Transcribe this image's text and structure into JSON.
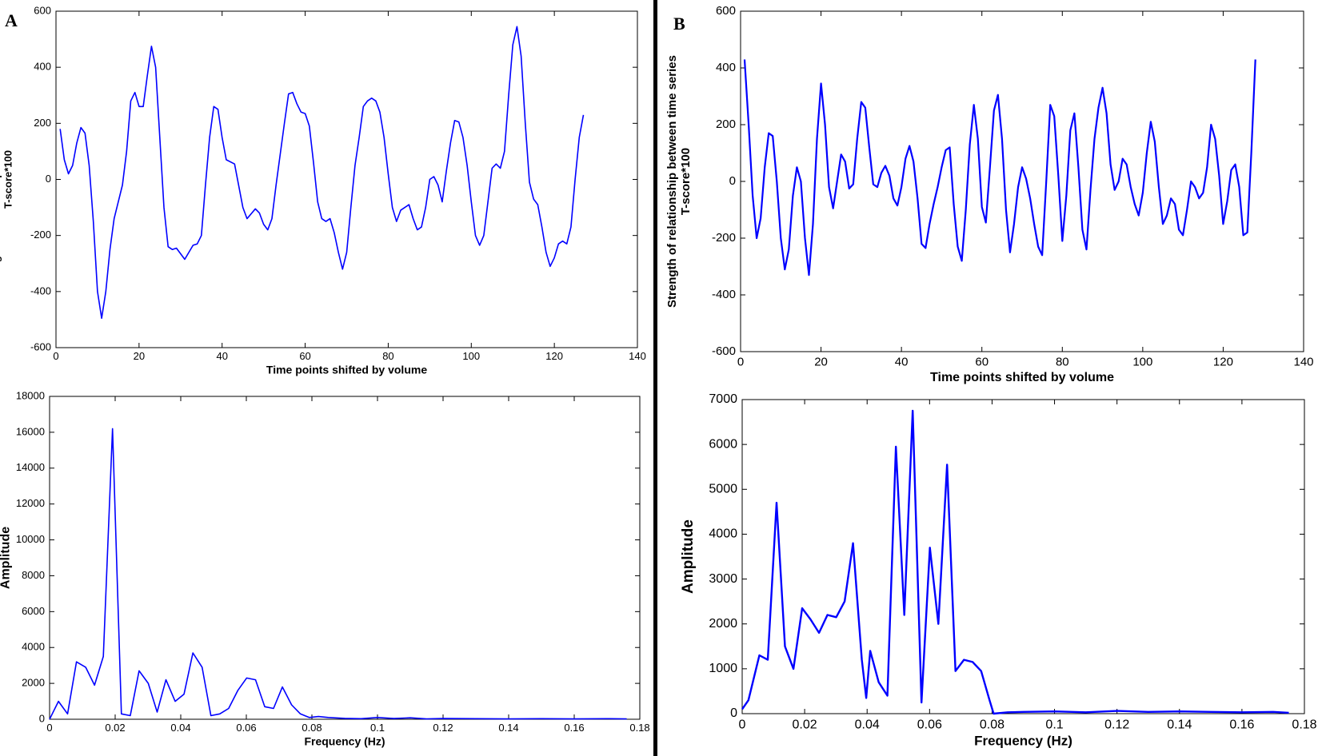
{
  "chart_data": [
    {
      "type": "line",
      "panel_label": "A",
      "xlabel": "Time points shifted by volume",
      "ylabel": [
        "Strength of relationship between time series",
        "T-score*100"
      ],
      "color": "#0000ff",
      "xlim": [
        0,
        140
      ],
      "ylim": [
        -600,
        600
      ],
      "xticks": [
        0,
        20,
        40,
        60,
        80,
        100,
        120,
        140
      ],
      "yticks": [
        -600,
        -400,
        -200,
        0,
        200,
        400,
        600
      ],
      "x": [
        1,
        2,
        3,
        4,
        5,
        6,
        7,
        8,
        9,
        10,
        11,
        12,
        13,
        14,
        16,
        17,
        18,
        19,
        20,
        21,
        22,
        23,
        24,
        25,
        26,
        27,
        28,
        29,
        31,
        33,
        34,
        35,
        36,
        37,
        38,
        39,
        40,
        41,
        43,
        45,
        46,
        48,
        49,
        50,
        51,
        52,
        53,
        55,
        56,
        57,
        58,
        59,
        60,
        61,
        62,
        63,
        64,
        65,
        66,
        67,
        68,
        69,
        70,
        71,
        72,
        73,
        74,
        75,
        76,
        77,
        78,
        79,
        80,
        81,
        82,
        83,
        84,
        85,
        86,
        87,
        88,
        89,
        90,
        91,
        92,
        93,
        94,
        95,
        96,
        97,
        98,
        99,
        100,
        101,
        102,
        103,
        104,
        105,
        106,
        107,
        108,
        109,
        110,
        111,
        112,
        113,
        114,
        115,
        116,
        117,
        118,
        119,
        120,
        121,
        122,
        123,
        124,
        125,
        126,
        127
      ],
      "values": [
        180,
        70,
        20,
        50,
        130,
        185,
        165,
        50,
        -150,
        -400,
        -495,
        -400,
        -250,
        -140,
        -20,
        100,
        280,
        310,
        260,
        260,
        370,
        475,
        400,
        150,
        -100,
        -240,
        -250,
        -245,
        -285,
        -235,
        -230,
        -200,
        -20,
        150,
        260,
        250,
        150,
        70,
        55,
        -100,
        -140,
        -105,
        -120,
        -160,
        -180,
        -140,
        -20,
        200,
        305,
        310,
        270,
        240,
        235,
        190,
        60,
        -80,
        -140,
        -150,
        -140,
        -190,
        -260,
        -320,
        -260,
        -100,
        50,
        150,
        260,
        280,
        290,
        280,
        240,
        150,
        20,
        -100,
        -150,
        -110,
        -100,
        -90,
        -140,
        -180,
        -170,
        -100,
        0,
        10,
        -20,
        -80,
        30,
        130,
        210,
        205,
        150,
        50,
        -80,
        -200,
        -235,
        -200,
        -80,
        40,
        55,
        40,
        100,
        300,
        480,
        545,
        440,
        200,
        -10,
        -70,
        -90,
        -170,
        -260,
        -310,
        -280,
        -230,
        -220,
        -230,
        -170,
        0,
        150,
        230
      ]
    },
    {
      "type": "line",
      "xlabel": "Frequency (Hz)",
      "ylabel": [
        "Amplitude"
      ],
      "color": "#0000ff",
      "xlim": [
        0,
        0.18
      ],
      "ylim": [
        0,
        18000
      ],
      "xticks": [
        0,
        0.02,
        0.04,
        0.06,
        0.08,
        0.1,
        0.12,
        0.14,
        0.16,
        0.18
      ],
      "yticks": [
        0,
        2000,
        4000,
        6000,
        8000,
        10000,
        12000,
        14000,
        16000,
        18000
      ],
      "x": [
        0,
        0.0027,
        0.0055,
        0.0082,
        0.011,
        0.0137,
        0.0164,
        0.0192,
        0.0219,
        0.0246,
        0.0273,
        0.0301,
        0.0328,
        0.0355,
        0.0383,
        0.041,
        0.0437,
        0.0465,
        0.0492,
        0.0519,
        0.0546,
        0.0574,
        0.0601,
        0.0628,
        0.0656,
        0.0683,
        0.071,
        0.0738,
        0.0765,
        0.0792,
        0.082,
        0.085,
        0.09,
        0.095,
        0.1,
        0.105,
        0.11,
        0.115,
        0.12,
        0.13,
        0.14,
        0.15,
        0.16,
        0.17,
        0.176
      ],
      "values": [
        0,
        1000,
        300,
        3200,
        2900,
        1900,
        3500,
        16200,
        300,
        200,
        2700,
        2000,
        400,
        2200,
        1000,
        1400,
        3700,
        2900,
        200,
        300,
        600,
        1600,
        2300,
        2200,
        700,
        600,
        1800,
        800,
        300,
        100,
        150,
        100,
        50,
        30,
        100,
        40,
        80,
        20,
        40,
        30,
        20,
        30,
        20,
        30,
        20
      ]
    },
    {
      "type": "line",
      "panel_label": "B",
      "xlabel": "Time points shifted by volume",
      "ylabel": [
        "Strength of relationship between time series",
        "T-score*100"
      ],
      "color": "#0000ff",
      "xlim": [
        0,
        140
      ],
      "ylim": [
        -600,
        600
      ],
      "xticks": [
        0,
        20,
        40,
        60,
        80,
        100,
        120,
        140
      ],
      "yticks": [
        -600,
        -400,
        -200,
        0,
        200,
        400,
        600
      ],
      "x": [
        1,
        2,
        3,
        4,
        5,
        6,
        7,
        8,
        9,
        10,
        11,
        12,
        13,
        14,
        15,
        16,
        17,
        18,
        19,
        20,
        21,
        22,
        23,
        24,
        25,
        26,
        27,
        28,
        29,
        30,
        31,
        32,
        33,
        34,
        35,
        36,
        37,
        38,
        39,
        40,
        41,
        42,
        43,
        44,
        45,
        46,
        47,
        48,
        49,
        50,
        51,
        52,
        53,
        54,
        55,
        56,
        57,
        58,
        59,
        60,
        61,
        62,
        63,
        64,
        65,
        66,
        67,
        68,
        69,
        70,
        71,
        72,
        73,
        74,
        75,
        76,
        77,
        78,
        79,
        80,
        81,
        82,
        83,
        84,
        85,
        86,
        87,
        88,
        89,
        90,
        91,
        92,
        93,
        94,
        95,
        96,
        97,
        98,
        99,
        100,
        101,
        102,
        103,
        104,
        105,
        106,
        107,
        108,
        109,
        110,
        111,
        112,
        113,
        114,
        115,
        116,
        117,
        118,
        119,
        120,
        121,
        122,
        123,
        124,
        125,
        126,
        127,
        128
      ],
      "values": [
        430,
        200,
        -50,
        -200,
        -130,
        50,
        170,
        160,
        0,
        -200,
        -310,
        -240,
        -50,
        50,
        0,
        -200,
        -330,
        -150,
        150,
        345,
        200,
        -20,
        -95,
        0,
        95,
        70,
        -25,
        -10,
        150,
        280,
        260,
        120,
        -10,
        -20,
        30,
        55,
        20,
        -60,
        -85,
        -20,
        80,
        125,
        70,
        -60,
        -220,
        -235,
        -150,
        -80,
        -20,
        50,
        110,
        120,
        -80,
        -230,
        -280,
        -100,
        130,
        270,
        150,
        -90,
        -145,
        50,
        250,
        305,
        150,
        -100,
        -250,
        -150,
        -20,
        50,
        10,
        -60,
        -150,
        -230,
        -260,
        0,
        270,
        230,
        20,
        -210,
        -50,
        180,
        240,
        50,
        -170,
        -240,
        -30,
        150,
        260,
        330,
        240,
        60,
        -30,
        0,
        80,
        60,
        -20,
        -80,
        -120,
        -40,
        100,
        210,
        140,
        -20,
        -150,
        -120,
        -60,
        -80,
        -170,
        -190,
        -100,
        0,
        -20,
        -60,
        -40,
        50,
        200,
        150,
        20,
        -150,
        -70,
        40,
        60,
        -20,
        -190,
        -180,
        100,
        430
      ]
    },
    {
      "type": "line",
      "xlabel": "Frequency (Hz)",
      "ylabel": [
        "Amplitude"
      ],
      "color": "#0000ff",
      "xlim": [
        0,
        0.18
      ],
      "ylim": [
        0,
        7000
      ],
      "xticks": [
        0,
        0.02,
        0.04,
        0.06,
        0.08,
        0.1,
        0.12,
        0.14,
        0.16,
        0.18
      ],
      "yticks": [
        0,
        1000,
        2000,
        3000,
        4000,
        5000,
        6000,
        7000
      ],
      "x": [
        0,
        0.002,
        0.0055,
        0.0082,
        0.011,
        0.0137,
        0.0164,
        0.0192,
        0.0219,
        0.0246,
        0.0273,
        0.0301,
        0.0328,
        0.0355,
        0.0383,
        0.0397,
        0.041,
        0.0437,
        0.0465,
        0.0492,
        0.0519,
        0.0546,
        0.0574,
        0.0601,
        0.0628,
        0.0656,
        0.0683,
        0.071,
        0.0738,
        0.0765,
        0.0792,
        0.0805,
        0.085,
        0.09,
        0.1,
        0.11,
        0.12,
        0.13,
        0.14,
        0.15,
        0.16,
        0.17,
        0.175
      ],
      "values": [
        100,
        300,
        1300,
        1200,
        4700,
        1500,
        1000,
        2350,
        2100,
        1800,
        2200,
        2150,
        2500,
        3800,
        1200,
        350,
        1400,
        700,
        400,
        5950,
        2200,
        6750,
        250,
        3700,
        2000,
        5550,
        950,
        1200,
        1150,
        950,
        300,
        0,
        30,
        40,
        50,
        30,
        60,
        40,
        50,
        40,
        30,
        40,
        20
      ]
    }
  ]
}
